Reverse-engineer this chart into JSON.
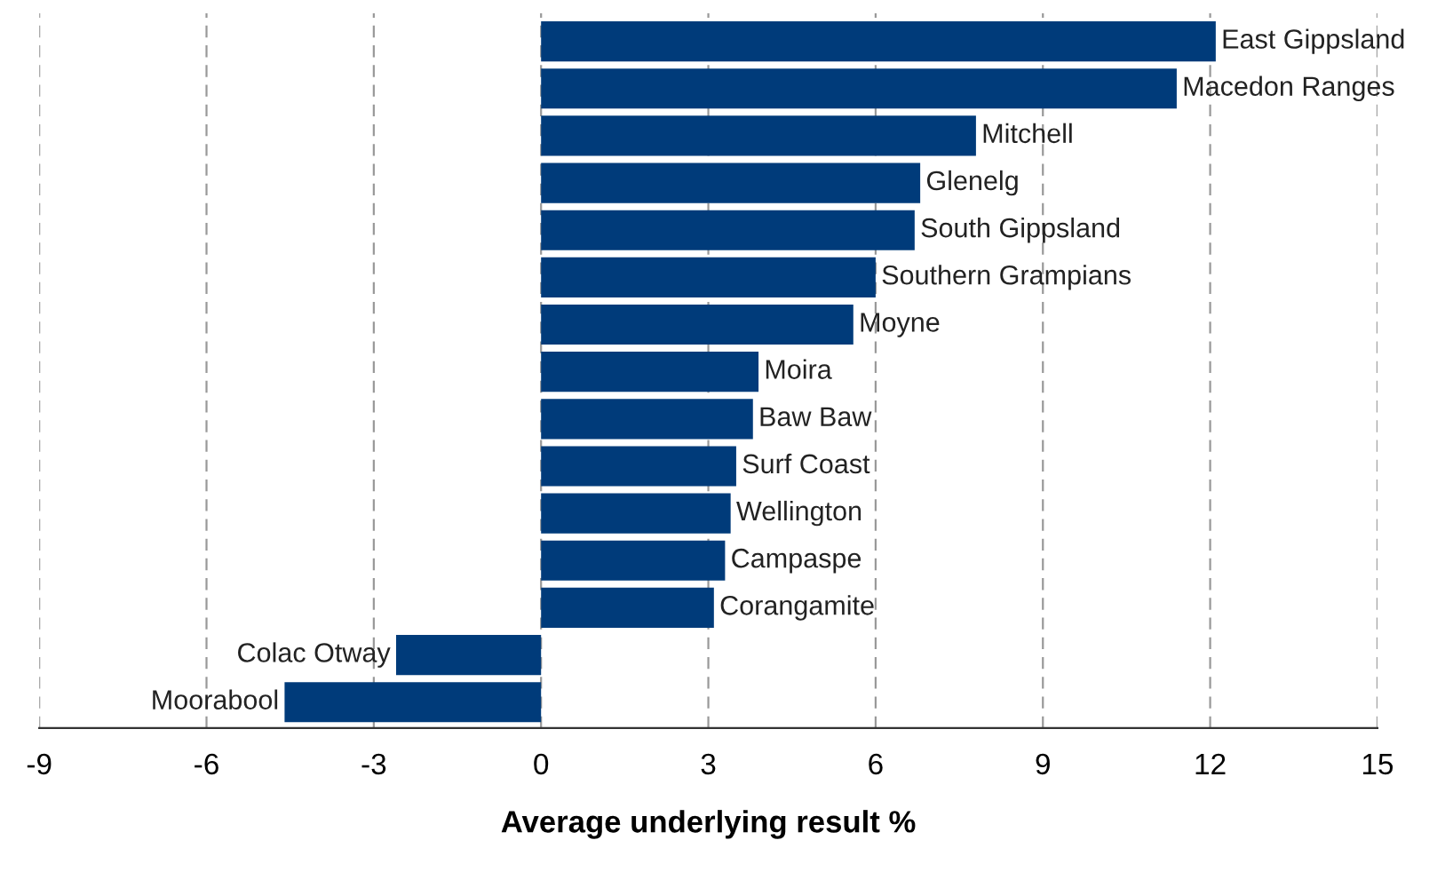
{
  "chart_data": {
    "type": "bar",
    "orientation": "horizontal",
    "xlabel": "Average underlying result %",
    "categories": [
      "East Gippsland",
      "Macedon Ranges",
      "Mitchell",
      "Glenelg",
      "South Gippsland",
      "Southern Grampians",
      "Moyne",
      "Moira",
      "Baw Baw",
      "Surf Coast",
      "Wellington",
      "Campaspe",
      "Corangamite",
      "Colac Otway",
      "Moorabool"
    ],
    "values": [
      12.1,
      11.4,
      7.8,
      6.8,
      6.7,
      6.0,
      5.6,
      3.9,
      3.8,
      3.5,
      3.4,
      3.3,
      3.1,
      -2.6,
      -4.6
    ],
    "color": "#003b7a",
    "xlim": [
      -9,
      15
    ],
    "xticks": [
      -9,
      -6,
      -3,
      0,
      3,
      6,
      9,
      12,
      15
    ],
    "grid": "x",
    "tick_labels": "x",
    "legend": false
  }
}
